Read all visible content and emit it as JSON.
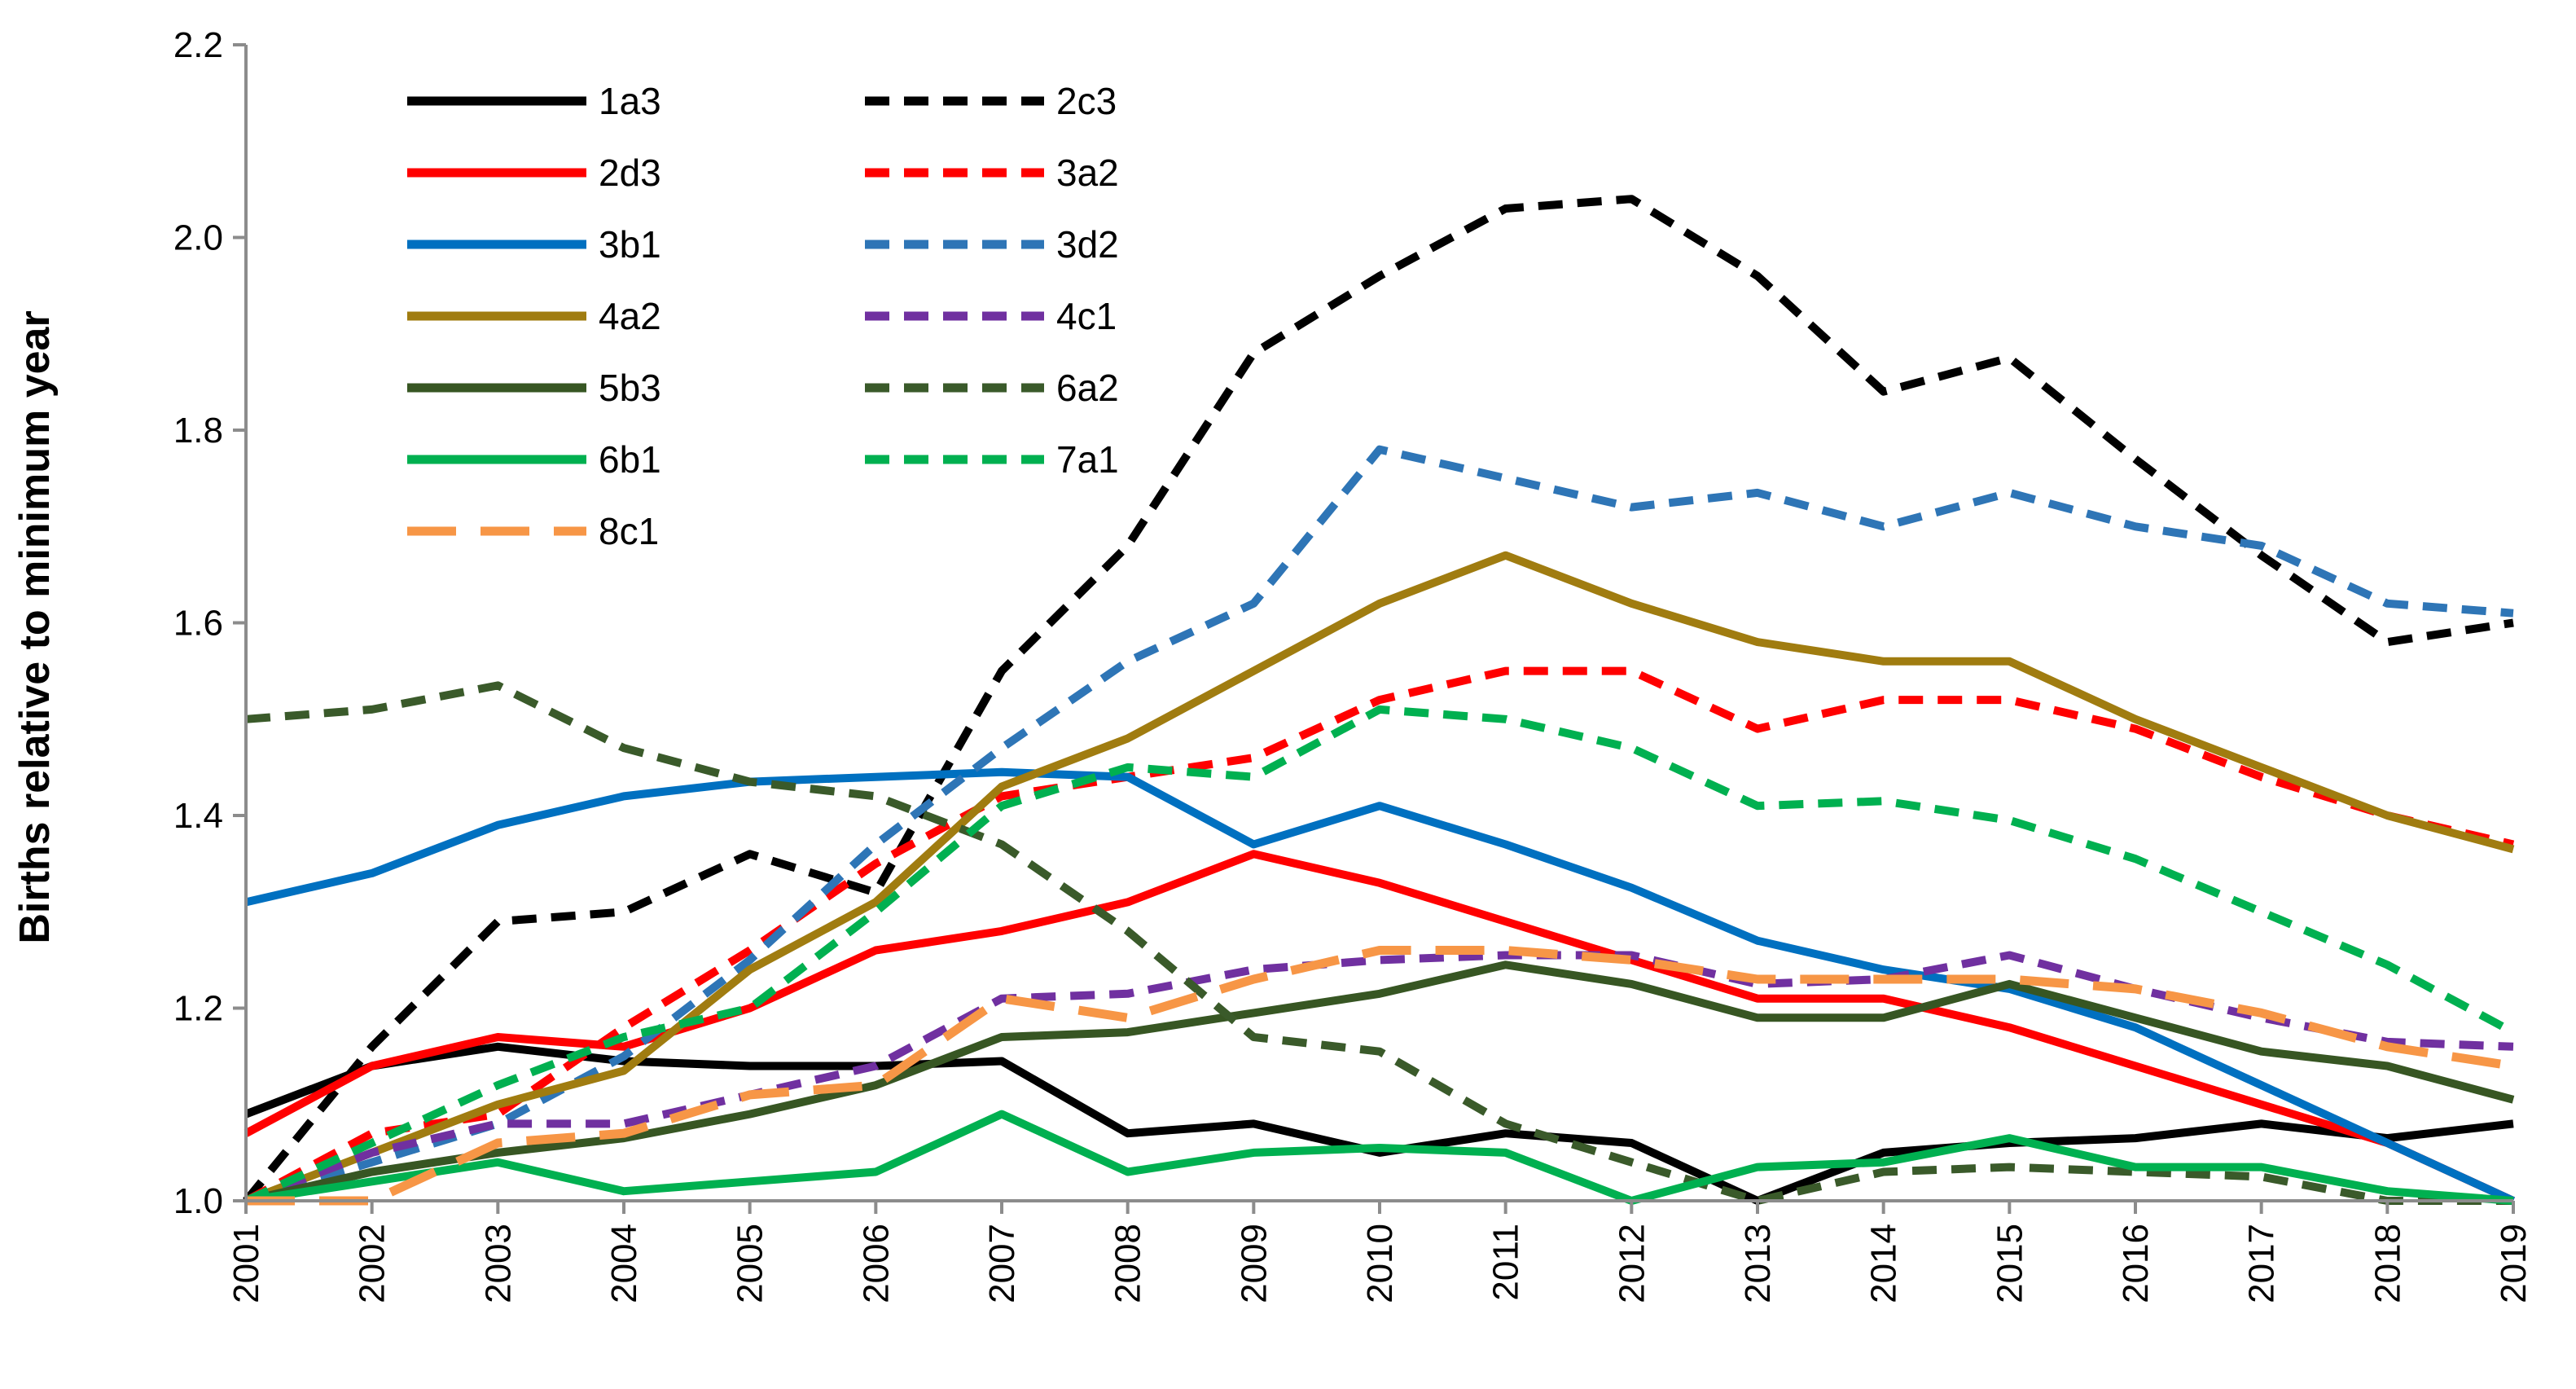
{
  "chart_data": {
    "type": "line",
    "title": "",
    "xlabel": "",
    "ylabel": "Births relative to minimum year",
    "ylim": [
      1.0,
      2.2
    ],
    "yticks": [
      "1.0",
      "1.2",
      "1.4",
      "1.6",
      "1.8",
      "2.0",
      "2.2"
    ],
    "grid": false,
    "legend_position": "top-left",
    "categories": [
      "2001",
      "2002",
      "2003",
      "2004",
      "2005",
      "2006",
      "2007",
      "2008",
      "2009",
      "2010",
      "2011",
      "2012",
      "2013",
      "2014",
      "2015",
      "2016",
      "2017",
      "2018",
      "2019"
    ],
    "series": [
      {
        "name": "1a3",
        "color": "#000000",
        "dash": "solid",
        "values": [
          1.09,
          1.14,
          1.16,
          1.145,
          1.14,
          1.14,
          1.145,
          1.07,
          1.08,
          1.05,
          1.07,
          1.06,
          1.0,
          1.05,
          1.06,
          1.065,
          1.08,
          1.065,
          1.08
        ]
      },
      {
        "name": "2c3",
        "color": "#000000",
        "dash": "short",
        "values": [
          1.0,
          1.16,
          1.29,
          1.3,
          1.36,
          1.32,
          1.55,
          1.68,
          1.88,
          1.96,
          2.03,
          2.04,
          1.96,
          1.84,
          1.875,
          1.77,
          1.67,
          1.58,
          1.6
        ]
      },
      {
        "name": "2d3",
        "color": "#ff0000",
        "dash": "solid",
        "values": [
          1.07,
          1.14,
          1.17,
          1.16,
          1.2,
          1.26,
          1.28,
          1.31,
          1.36,
          1.33,
          1.29,
          1.25,
          1.21,
          1.21,
          1.18,
          1.14,
          1.1,
          1.06,
          1.0
        ]
      },
      {
        "name": "3a2",
        "color": "#ff0000",
        "dash": "short",
        "values": [
          1.0,
          1.07,
          1.09,
          1.18,
          1.26,
          1.35,
          1.42,
          1.44,
          1.46,
          1.52,
          1.55,
          1.55,
          1.49,
          1.52,
          1.52,
          1.49,
          1.44,
          1.4,
          1.37
        ]
      },
      {
        "name": "3b1",
        "color": "#0070c0",
        "dash": "solid",
        "values": [
          1.31,
          1.34,
          1.39,
          1.42,
          1.435,
          1.44,
          1.445,
          1.44,
          1.37,
          1.41,
          1.37,
          1.325,
          1.27,
          1.24,
          1.22,
          1.18,
          1.12,
          1.06,
          1.0
        ]
      },
      {
        "name": "3d2",
        "color": "#2e75b6",
        "dash": "short",
        "values": [
          1.0,
          1.04,
          1.08,
          1.15,
          1.25,
          1.37,
          1.47,
          1.56,
          1.62,
          1.78,
          1.75,
          1.72,
          1.735,
          1.7,
          1.735,
          1.7,
          1.68,
          1.62,
          1.61
        ]
      },
      {
        "name": "4a2",
        "color": "#a07c10",
        "dash": "solid",
        "values": [
          1.0,
          1.05,
          1.1,
          1.135,
          1.24,
          1.31,
          1.43,
          1.48,
          1.55,
          1.62,
          1.67,
          1.62,
          1.58,
          1.56,
          1.56,
          1.5,
          1.45,
          1.4,
          1.365
        ]
      },
      {
        "name": "4c1",
        "color": "#7030a0",
        "dash": "short",
        "values": [
          1.0,
          1.05,
          1.08,
          1.08,
          1.11,
          1.14,
          1.21,
          1.215,
          1.24,
          1.25,
          1.255,
          1.255,
          1.225,
          1.23,
          1.255,
          1.22,
          1.19,
          1.165,
          1.16
        ]
      },
      {
        "name": "5b3",
        "color": "#375623",
        "dash": "solid",
        "values": [
          1.0,
          1.03,
          1.05,
          1.065,
          1.09,
          1.12,
          1.17,
          1.175,
          1.195,
          1.215,
          1.245,
          1.225,
          1.19,
          1.19,
          1.225,
          1.19,
          1.155,
          1.14,
          1.105
        ]
      },
      {
        "name": "6a2",
        "color": "#3a5a2a",
        "dash": "short",
        "values": [
          1.5,
          1.51,
          1.535,
          1.47,
          1.435,
          1.42,
          1.37,
          1.28,
          1.17,
          1.155,
          1.08,
          1.04,
          1.0,
          1.03,
          1.035,
          1.03,
          1.025,
          1.0,
          1.0
        ]
      },
      {
        "name": "6b1",
        "color": "#00b050",
        "dash": "solid",
        "values": [
          1.0,
          1.02,
          1.04,
          1.01,
          1.02,
          1.03,
          1.09,
          1.03,
          1.05,
          1.055,
          1.05,
          1.0,
          1.035,
          1.04,
          1.065,
          1.035,
          1.035,
          1.01,
          1.0
        ]
      },
      {
        "name": "7a1",
        "color": "#00b050",
        "dash": "short",
        "values": [
          1.0,
          1.06,
          1.12,
          1.17,
          1.2,
          1.3,
          1.41,
          1.45,
          1.44,
          1.51,
          1.5,
          1.47,
          1.41,
          1.415,
          1.395,
          1.355,
          1.3,
          1.245,
          1.175
        ]
      },
      {
        "name": "8c1",
        "color": "#f79646",
        "dash": "long",
        "values": [
          1.0,
          1.0,
          1.06,
          1.07,
          1.11,
          1.12,
          1.21,
          1.19,
          1.23,
          1.26,
          1.26,
          1.25,
          1.23,
          1.23,
          1.23,
          1.22,
          1.195,
          1.16,
          1.14
        ]
      }
    ]
  }
}
